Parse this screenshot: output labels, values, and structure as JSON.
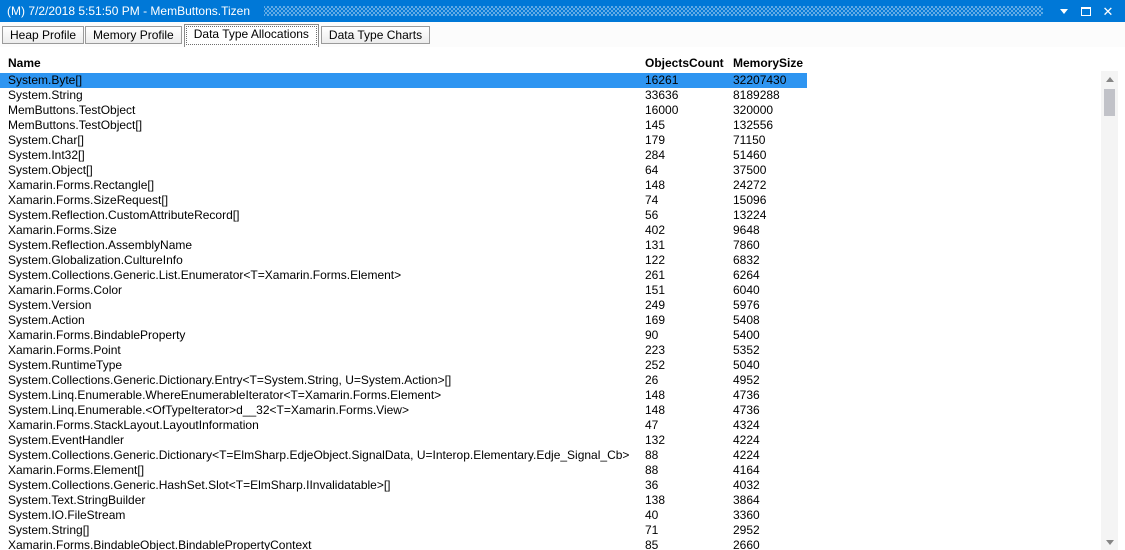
{
  "window": {
    "title": "(M) 7/2/2018 5:51:50 PM - MemButtons.Tizen",
    "controls": {
      "close_glyph": "✕"
    }
  },
  "colors": {
    "titlebar": "#0078d7",
    "selection": "#2e95f1",
    "scroll_thumb": "#c1c2c8"
  },
  "tabs": [
    {
      "label": "Heap Profile",
      "active": false
    },
    {
      "label": "Memory Profile",
      "active": false
    },
    {
      "label": "Data Type Allocations",
      "active": true
    },
    {
      "label": "Data Type Charts",
      "active": false
    }
  ],
  "table": {
    "columns": [
      "Name",
      "ObjectsCount",
      "MemorySize"
    ],
    "selected_index": 0,
    "rows": [
      [
        "System.Byte[]",
        "16261",
        "32207430"
      ],
      [
        "System.String",
        "33636",
        "8189288"
      ],
      [
        "MemButtons.TestObject",
        "16000",
        "320000"
      ],
      [
        "MemButtons.TestObject[]",
        "145",
        "132556"
      ],
      [
        "System.Char[]",
        "179",
        "71150"
      ],
      [
        "System.Int32[]",
        "284",
        "51460"
      ],
      [
        "System.Object[]",
        "64",
        "37500"
      ],
      [
        "Xamarin.Forms.Rectangle[]",
        "148",
        "24272"
      ],
      [
        "Xamarin.Forms.SizeRequest[]",
        "74",
        "15096"
      ],
      [
        "System.Reflection.CustomAttributeRecord[]",
        "56",
        "13224"
      ],
      [
        "Xamarin.Forms.Size",
        "402",
        "9648"
      ],
      [
        "System.Reflection.AssemblyName",
        "131",
        "7860"
      ],
      [
        "System.Globalization.CultureInfo",
        "122",
        "6832"
      ],
      [
        "System.Collections.Generic.List.Enumerator<T=Xamarin.Forms.Element>",
        "261",
        "6264"
      ],
      [
        "Xamarin.Forms.Color",
        "151",
        "6040"
      ],
      [
        "System.Version",
        "249",
        "5976"
      ],
      [
        "System.Action",
        "169",
        "5408"
      ],
      [
        "Xamarin.Forms.BindableProperty",
        "90",
        "5400"
      ],
      [
        "Xamarin.Forms.Point",
        "223",
        "5352"
      ],
      [
        "System.RuntimeType",
        "252",
        "5040"
      ],
      [
        "System.Collections.Generic.Dictionary.Entry<T=System.String, U=System.Action>[]",
        "26",
        "4952"
      ],
      [
        "System.Linq.Enumerable.WhereEnumerableIterator<T=Xamarin.Forms.Element>",
        "148",
        "4736"
      ],
      [
        "System.Linq.Enumerable.<OfTypeIterator>d__32<T=Xamarin.Forms.View>",
        "148",
        "4736"
      ],
      [
        "Xamarin.Forms.StackLayout.LayoutInformation",
        "47",
        "4324"
      ],
      [
        "System.EventHandler",
        "132",
        "4224"
      ],
      [
        "System.Collections.Generic.Dictionary<T=ElmSharp.EdjeObject.SignalData, U=Interop.Elementary.Edje_Signal_Cb>",
        "88",
        "4224"
      ],
      [
        "Xamarin.Forms.Element[]",
        "88",
        "4164"
      ],
      [
        "System.Collections.Generic.HashSet.Slot<T=ElmSharp.IInvalidatable>[]",
        "36",
        "4032"
      ],
      [
        "System.Text.StringBuilder",
        "138",
        "3864"
      ],
      [
        "System.IO.FileStream",
        "40",
        "3360"
      ],
      [
        "System.String[]",
        "71",
        "2952"
      ],
      [
        "Xamarin.Forms.BindableObject.BindablePropertyContext",
        "85",
        "2660"
      ]
    ]
  }
}
